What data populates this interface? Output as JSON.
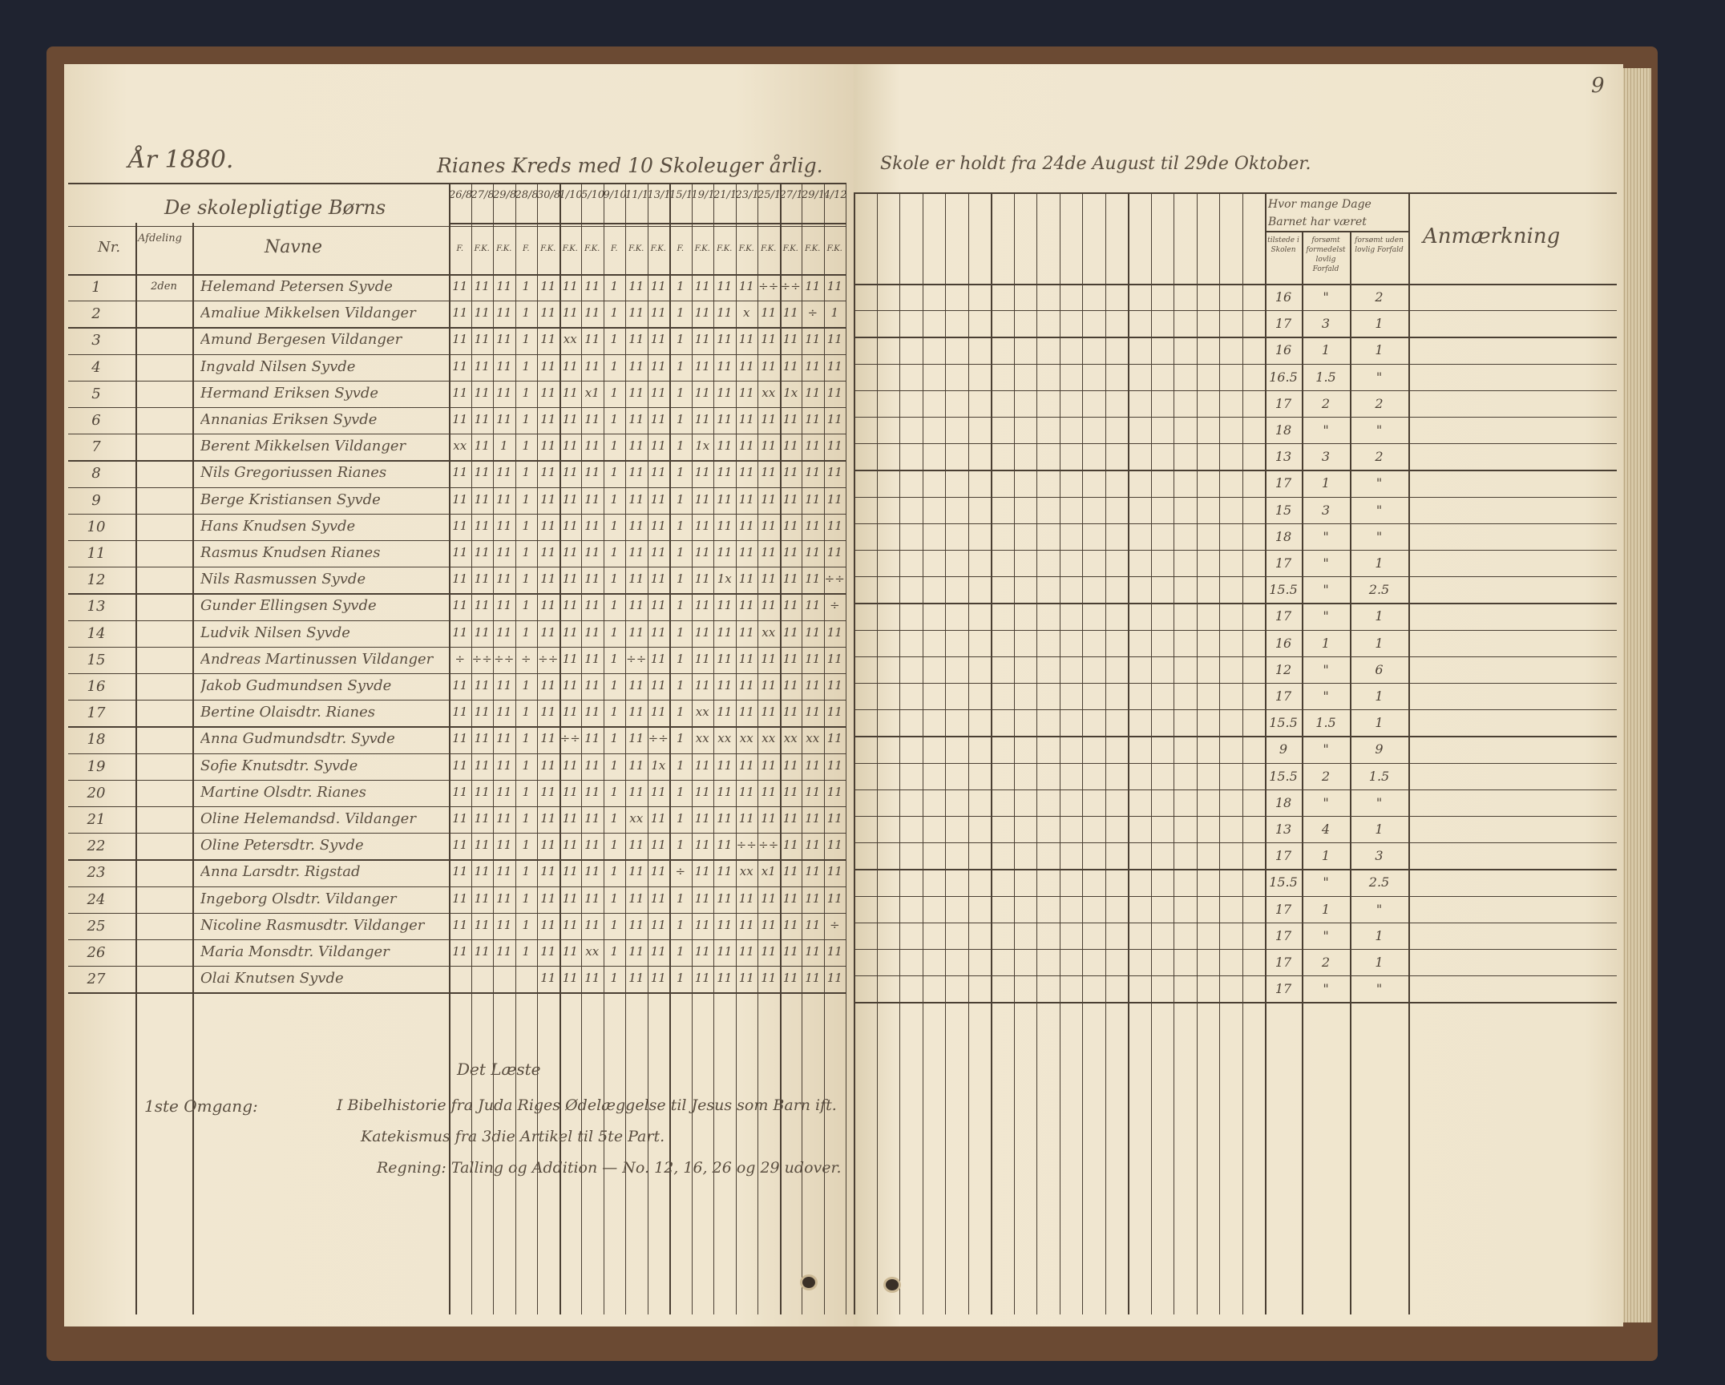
{
  "page_number": "9",
  "left_page": {
    "year": "År 1880.",
    "title": "Rianes Kreds med 10 Skoleuger årlig.",
    "group_header": "De skolepligtige Børns",
    "columns": {
      "nr": "Nr.",
      "afdeling": "Afdeling",
      "navne": "Navne"
    },
    "dates": [
      "26/8",
      "27/8",
      "29/8",
      "28/8",
      "30/8",
      "1/10",
      "5/10",
      "9/10",
      "11/10",
      "13/10",
      "15/10",
      "19/10",
      "21/10",
      "23/10",
      "25/10",
      "27/10",
      "29/10",
      "4/12"
    ],
    "date_subheaders": [
      "F.",
      "F.K.",
      "F.K.",
      "F.",
      "F.K.",
      "F.K.",
      "F.K.",
      "F.",
      "F.K.",
      "F.K.",
      "F.",
      "F.K.",
      "F.K.",
      "F.K.",
      "F.K.",
      "F.K.",
      "F.K.",
      "F.K."
    ],
    "rows": [
      {
        "nr": "1",
        "afdeling": "2den",
        "name": "Helemand Petersen Syvde",
        "marks": "11 11 11 1 11 11 11 1 11 11 1 11 11 11 ÷÷ ÷÷ 11 11"
      },
      {
        "nr": "2",
        "afdeling": "",
        "name": "Amaliue Mikkelsen Vildanger",
        "marks": "11 11 11 1 11 11 11 1 11 11 1 11 11 x 11 11 ÷ 1"
      },
      {
        "nr": "3",
        "afdeling": "",
        "name": "Amund Bergesen Vildanger",
        "marks": "11 11 11 1 11 xx 11 1 11 11 1 11 11 11 11 11 11 11"
      },
      {
        "nr": "4",
        "afdeling": "",
        "name": "Ingvald Nilsen Syvde",
        "marks": "11 11 11 1 11 11 11 1 11 11 1 11 11 11 11 11 11 11"
      },
      {
        "nr": "5",
        "afdeling": "",
        "name": "Hermand Eriksen Syvde",
        "marks": "11 11 11 1 11 11 x1 1 11 11 1 11 11 11 xx 1x 11 11"
      },
      {
        "nr": "6",
        "afdeling": "",
        "name": "Annanias Eriksen Syvde",
        "marks": "11 11 11 1 11 11 11 1 11 11 1 11 11 11 11 11 11 11"
      },
      {
        "nr": "7",
        "afdeling": "",
        "name": "Berent Mikkelsen Vildanger",
        "marks": "xx 11 1 1 11 11 11 1 11 11 1 1x 11 11 11 11 11 11"
      },
      {
        "nr": "8",
        "afdeling": "",
        "name": "Nils Gregoriussen Rianes",
        "marks": "11 11 11 1 11 11 11 1 11 11 1 11 11 11 11 11 11 11"
      },
      {
        "nr": "9",
        "afdeling": "",
        "name": "Berge Kristiansen Syvde",
        "marks": "11 11 11 1 11 11 11 1 11 11 1 11 11 11 11 11 11 11"
      },
      {
        "nr": "10",
        "afdeling": "",
        "name": "Hans Knudsen Syvde",
        "marks": "11 11 11 1 11 11 11 1 11 11 1 11 11 11 11 11 11 11"
      },
      {
        "nr": "11",
        "afdeling": "",
        "name": "Rasmus Knudsen Rianes",
        "marks": "11 11 11 1 11 11 11 1 11 11 1 11 11 11 11 11 11 11"
      },
      {
        "nr": "12",
        "afdeling": "",
        "name": "Nils Rasmussen Syvde",
        "marks": "11 11 11 1 11 11 11 1 11 11 1 11 1x 11 11 11 11 ÷÷"
      },
      {
        "nr": "13",
        "afdeling": "",
        "name": "Gunder Ellingsen Syvde",
        "marks": "11 11 11 1 11 11 11 1 11 11 1 11 11 11 11 11 11 ÷"
      },
      {
        "nr": "14",
        "afdeling": "",
        "name": "Ludvik Nilsen Syvde",
        "marks": "11 11 11 1 11 11 11 1 11 11 1 11 11 11 xx 11 11 11"
      },
      {
        "nr": "15",
        "afdeling": "",
        "name": "Andreas Martinussen Vildanger",
        "marks": "÷ ÷÷ ÷÷ ÷ ÷÷ 11 11 1 ÷÷ 11 1 11 11 11 11 11 11 11"
      },
      {
        "nr": "16",
        "afdeling": "",
        "name": "Jakob Gudmundsen Syvde",
        "marks": "11 11 11 1 11 11 11 1 11 11 1 11 11 11 11 11 11 11"
      },
      {
        "nr": "17",
        "afdeling": "",
        "name": "Bertine Olaisdtr. Rianes",
        "marks": "11 11 11 1 11 11 11 1 11 11 1 xx 11 11 11 11 11 11"
      },
      {
        "nr": "18",
        "afdeling": "",
        "name": "Anna Gudmundsdtr. Syvde",
        "marks": "11 11 11 1 11 ÷÷ 11 1 11 ÷÷ 1 xx xx xx xx xx xx 11"
      },
      {
        "nr": "19",
        "afdeling": "",
        "name": "Sofie Knutsdtr. Syvde",
        "marks": "11 11 11 1 11 11 11 1 11 1x 1 11 11 11 11 11 11 11"
      },
      {
        "nr": "20",
        "afdeling": "",
        "name": "Martine Olsdtr. Rianes",
        "marks": "11 11 11 1 11 11 11 1 11 11 1 11 11 11 11 11 11 11"
      },
      {
        "nr": "21",
        "afdeling": "",
        "name": "Oline Helemandsd. Vildanger",
        "marks": "11 11 11 1 11 11 11 1 xx 11 1 11 11 11 11 11 11 11"
      },
      {
        "nr": "22",
        "afdeling": "",
        "name": "Oline Petersdtr. Syvde",
        "marks": "11 11 11 1 11 11 11 1 11 11 1 11 11 ÷÷ ÷÷ 11 11 11"
      },
      {
        "nr": "23",
        "afdeling": "",
        "name": "Anna Larsdtr. Rigstad",
        "marks": "11 11 11 1 11 11 11 1 11 11 ÷ 11 11 xx x1 11 11 11"
      },
      {
        "nr": "24",
        "afdeling": "",
        "name": "Ingeborg Olsdtr. Vildanger",
        "marks": "11 11 11 1 11 11 11 1 11 11 1 11 11 11 11 11 11 11"
      },
      {
        "nr": "25",
        "afdeling": "",
        "name": "Nicoline Rasmusdtr. Vildanger",
        "marks": "11 11 11 1 11 11 11 1 11 11 1 11 11 11 11 11 11 ÷"
      },
      {
        "nr": "26",
        "afdeling": "",
        "name": "Maria Monsdtr. Vildanger",
        "marks": "11 11 11 1 11 11 xx 1 11 11 1 11 11 11 11 11 11 11"
      },
      {
        "nr": "27",
        "afdeling": "",
        "name": "Olai Knutsen Syvde",
        "marks": "    11 11 11 1 11 11 1 11 11 11 11 11 11 11"
      }
    ],
    "footer": {
      "heading": "Det Læste",
      "label": "1ste Omgang:",
      "lines": [
        "I Bibelhistorie fra Juda Riges Ødelæggelse til Jesus som Barn ift.",
        "Katekismus fra 3die Artikel til 5te Part.",
        "Regning: Talling og Addition — No. 12, 16, 26 og 29 udover."
      ]
    }
  },
  "right_page": {
    "title": "Skole er holdt fra 24de August til 29de Oktober.",
    "summary_header": "Hvor mange Dage Barnet har været",
    "summary_columns": [
      "tilstede i Skolen",
      "forsømt formedelst lovlig Forfald",
      "forsømt uden lovlig Forfald"
    ],
    "remarks_header": "Anmærkning",
    "summary_rows": [
      [
        "16",
        "\"",
        "2"
      ],
      [
        "17",
        "3",
        "1"
      ],
      [
        "16",
        "1",
        "1"
      ],
      [
        "16.5",
        "1.5",
        "\""
      ],
      [
        "17",
        "2",
        "2"
      ],
      [
        "18",
        "\"",
        "\""
      ],
      [
        "13",
        "3",
        "2"
      ],
      [
        "17",
        "1",
        "\""
      ],
      [
        "15",
        "3",
        "\""
      ],
      [
        "18",
        "\"",
        "\""
      ],
      [
        "17",
        "\"",
        "1"
      ],
      [
        "15.5",
        "\"",
        "2.5"
      ],
      [
        "17",
        "\"",
        "1"
      ],
      [
        "16",
        "1",
        "1"
      ],
      [
        "12",
        "\"",
        "6"
      ],
      [
        "17",
        "\"",
        "1"
      ],
      [
        "15.5",
        "1.5",
        "1"
      ],
      [
        "9",
        "\"",
        "9"
      ],
      [
        "15.5",
        "2",
        "1.5"
      ],
      [
        "18",
        "\"",
        "\""
      ],
      [
        "13",
        "4",
        "1"
      ],
      [
        "17",
        "1",
        "3"
      ],
      [
        "15.5",
        "\"",
        "2.5"
      ],
      [
        "17",
        "1",
        "\""
      ],
      [
        "17",
        "\"",
        "1"
      ],
      [
        "17",
        "2",
        "1"
      ],
      [
        "17",
        "\"",
        "\""
      ]
    ]
  },
  "colors": {
    "paper": "#efe4cd",
    "ink": "#4a3f33",
    "cover": "#6b4a33",
    "background": "#1f2330"
  }
}
